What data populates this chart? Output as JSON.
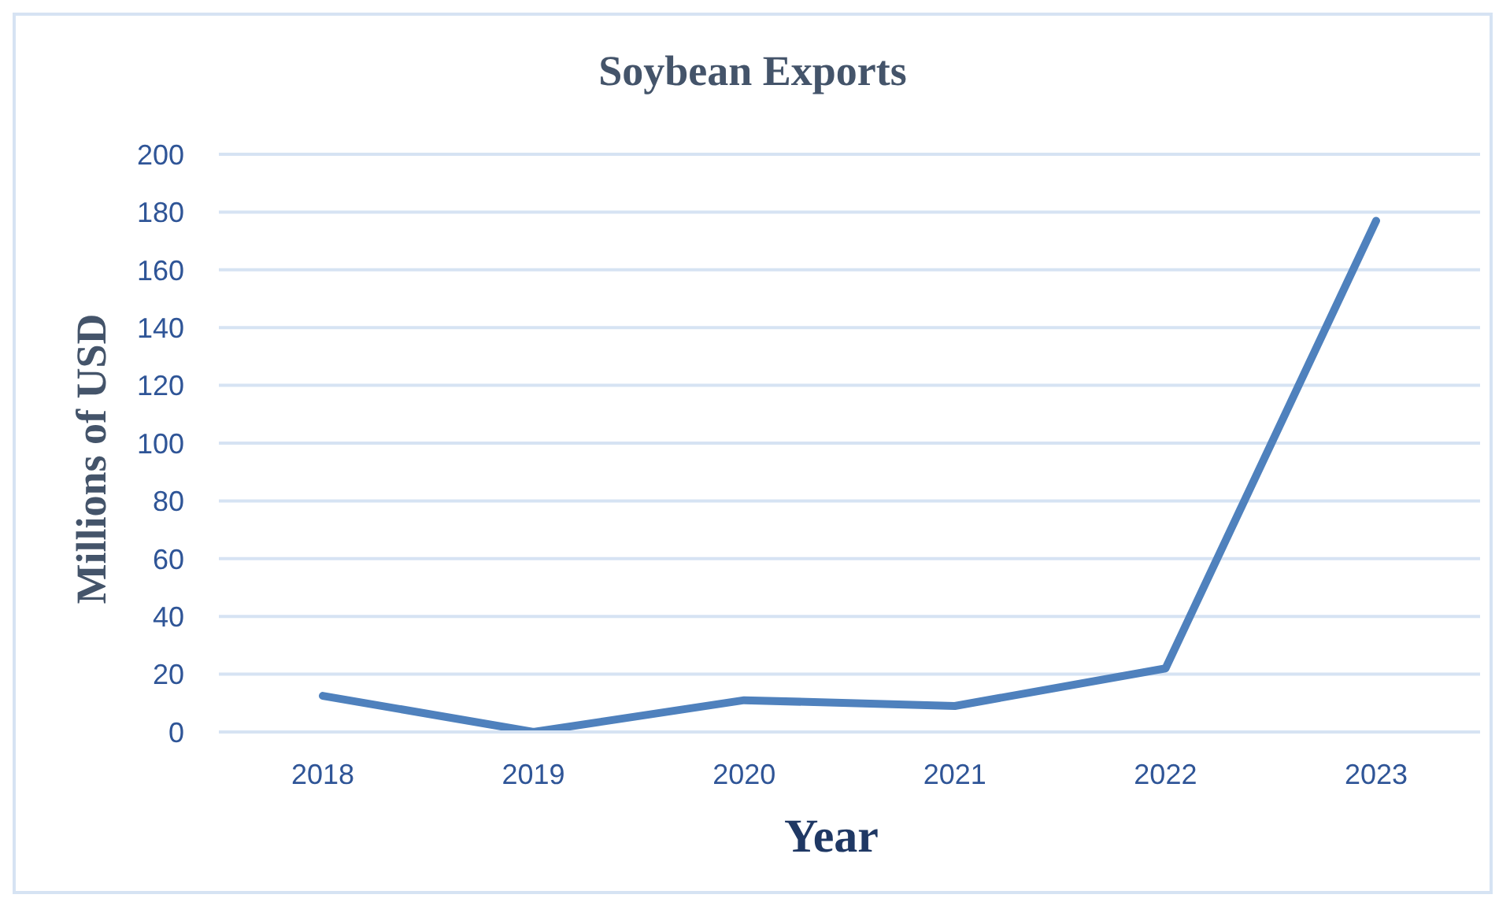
{
  "chart_data": {
    "type": "line",
    "title": "Soybean Exports",
    "xlabel": "Year",
    "ylabel": "Millions of USD",
    "categories": [
      "2018",
      "2019",
      "2020",
      "2021",
      "2022",
      "2023"
    ],
    "series": [
      {
        "color": "#4f81bd",
        "values": [
          12.5,
          0,
          11,
          9,
          22,
          177
        ]
      }
    ],
    "ylim": [
      0,
      200
    ],
    "yticks": [
      0,
      20,
      40,
      60,
      80,
      100,
      120,
      140,
      160,
      180,
      200
    ],
    "grid": "y",
    "legend": false,
    "marker": "none",
    "line_style": "solid"
  }
}
